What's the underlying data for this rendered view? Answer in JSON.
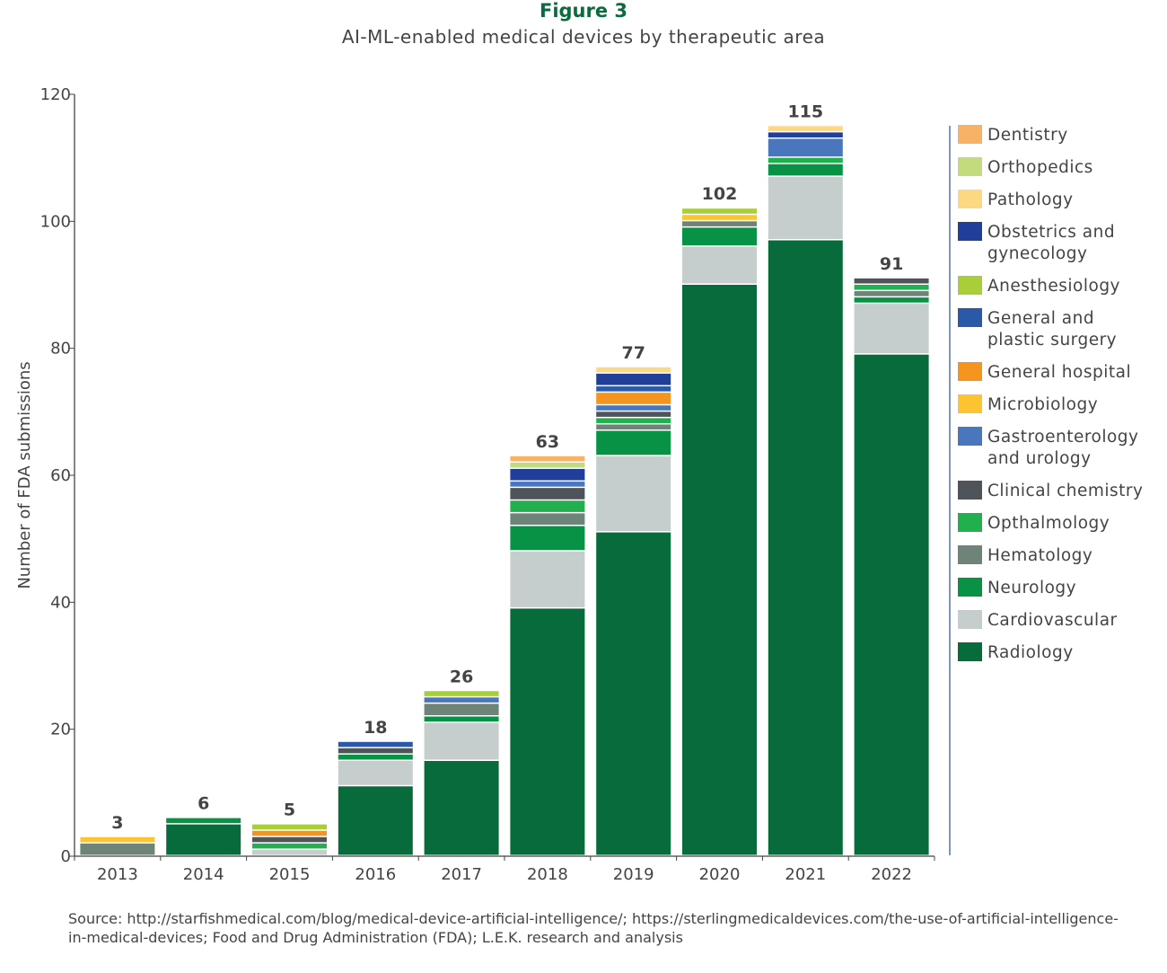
{
  "chart_data": {
    "type": "bar",
    "stacked": true,
    "title": "Figure 3",
    "subtitle": "AI-ML-enabled medical devices by therapeutic area",
    "xlabel": "",
    "ylabel": "Number of FDA submissions",
    "ylim": [
      0,
      120
    ],
    "yticks": [
      0,
      20,
      40,
      60,
      80,
      100,
      120
    ],
    "grid": false,
    "legend_placement": "right",
    "categories": [
      "2013",
      "2014",
      "2015",
      "2016",
      "2017",
      "2018",
      "2019",
      "2020",
      "2021",
      "2022"
    ],
    "totals": [
      3,
      6,
      5,
      18,
      26,
      63,
      77,
      102,
      115,
      91
    ],
    "series": [
      {
        "name": "Radiology",
        "color": "#086b3c",
        "values": [
          0,
          5,
          0,
          11,
          15,
          39,
          51,
          90,
          97,
          79
        ]
      },
      {
        "name": "Cardiovascular",
        "color": "#c5cecd",
        "values": [
          0,
          0,
          1,
          4,
          6,
          9,
          12,
          6,
          10,
          8
        ]
      },
      {
        "name": "Neurology",
        "color": "#079245",
        "values": [
          0,
          1,
          0,
          1,
          1,
          4,
          4,
          3,
          2,
          1
        ]
      },
      {
        "name": "Hematology",
        "color": "#6f8479",
        "values": [
          2,
          0,
          0,
          0,
          2,
          2,
          1,
          1,
          0,
          1
        ]
      },
      {
        "name": "Opthalmology",
        "color": "#22b04f",
        "values": [
          0,
          0,
          1,
          0,
          0,
          2,
          1,
          0,
          1,
          1
        ]
      },
      {
        "name": "Clinical chemistry",
        "color": "#4f545a",
        "values": [
          0,
          0,
          1,
          1,
          0,
          2,
          1,
          0,
          0,
          1
        ]
      },
      {
        "name": "Gastroenterology and urology",
        "color": "#4a76be",
        "values": [
          0,
          0,
          0,
          0,
          1,
          1,
          1,
          0,
          3,
          0
        ]
      },
      {
        "name": "Microbiology",
        "color": "#fcc433",
        "values": [
          1,
          0,
          0,
          0,
          0,
          0,
          0,
          1,
          0,
          0
        ]
      },
      {
        "name": "General hospital",
        "color": "#f5951f",
        "values": [
          0,
          0,
          1,
          0,
          0,
          0,
          2,
          0,
          0,
          0
        ]
      },
      {
        "name": "General and plastic surgery",
        "color": "#2a59a8",
        "values": [
          0,
          0,
          0,
          1,
          0,
          0,
          1,
          0,
          0,
          0
        ]
      },
      {
        "name": "Anesthesiology",
        "color": "#a8ce3a",
        "values": [
          0,
          0,
          1,
          0,
          1,
          0,
          0,
          1,
          0,
          0
        ]
      },
      {
        "name": "Obstetrics and gynecology",
        "color": "#213f99",
        "values": [
          0,
          0,
          0,
          0,
          0,
          2,
          2,
          0,
          1,
          0
        ]
      },
      {
        "name": "Pathology",
        "color": "#fdd882",
        "values": [
          0,
          0,
          0,
          0,
          0,
          0,
          1,
          0,
          1,
          0
        ]
      },
      {
        "name": "Orthopedics",
        "color": "#c2db7d",
        "values": [
          0,
          0,
          0,
          0,
          0,
          1,
          0,
          0,
          0,
          0
        ]
      },
      {
        "name": "Dentistry",
        "color": "#f7b365",
        "values": [
          0,
          0,
          0,
          0,
          0,
          1,
          0,
          0,
          0,
          0
        ]
      }
    ],
    "legend_lines": {
      "Obstetrics and gynecology": [
        "Obstetrics and",
        "gynecology"
      ],
      "General and plastic surgery": [
        "General and",
        "plastic surgery"
      ],
      "Gastroenterology and urology": [
        "Gastroenterology",
        "and urology"
      ]
    }
  },
  "source": "Source: http://starfishmedical.com/blog/medical-device-artificial-intelligence/; https://sterlingmedicaldevices.com/the-use-of-artificial-intelligence-in-medical-devices; Food and Drug Administration (FDA); L.E.K. research and analysis"
}
